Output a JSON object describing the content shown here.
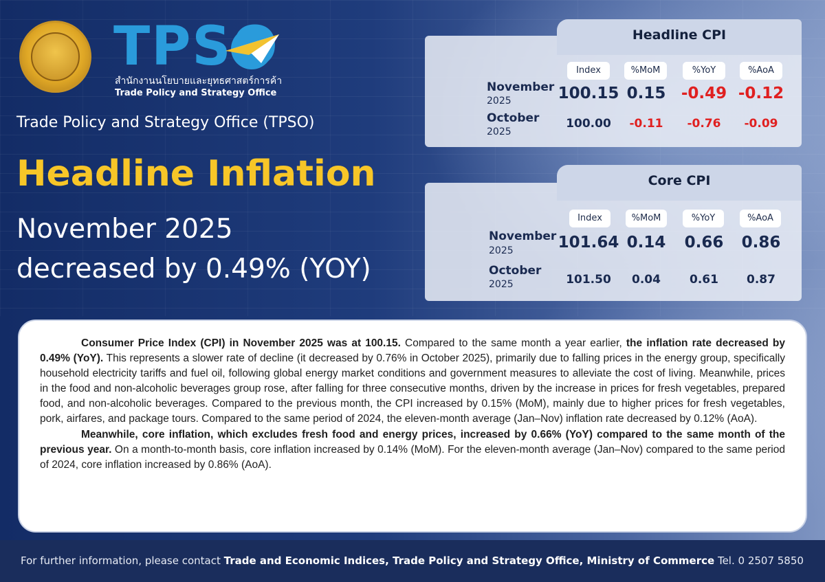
{
  "header": {
    "logo_text": "TPSO",
    "logo_thai": "สำนักงานนโยบายและยุทธศาสตร์การค้า",
    "logo_english": "Trade Policy and Strategy Office",
    "office_name": "Trade Policy and Strategy Office (TPSO)",
    "headline": "Headline Inflation",
    "subheadline_line1": "November 2025",
    "subheadline_line2": "decreased by 0.49% (YOY)"
  },
  "headline_cpi": {
    "title": "Headline CPI",
    "columns": [
      "Index",
      "%MoM",
      "%YoY",
      "%AoA"
    ],
    "rows": [
      {
        "month": "November",
        "year": "2025",
        "index": "100.15",
        "mom": "0.15",
        "yoy": "-0.49",
        "aoa": "-0.12"
      },
      {
        "month": "October",
        "year": "2025",
        "index": "100.00",
        "mom": "-0.11",
        "yoy": "-0.76",
        "aoa": "-0.09"
      }
    ]
  },
  "core_cpi": {
    "title": "Core CPI",
    "columns": [
      "Index",
      "%MoM",
      "%YoY",
      "%AoA"
    ],
    "rows": [
      {
        "month": "November",
        "year": "2025",
        "index": "101.64",
        "mom": "0.14",
        "yoy": "0.66",
        "aoa": "0.86"
      },
      {
        "month": "October",
        "year": "2025",
        "index": "101.50",
        "mom": "0.04",
        "yoy": "0.61",
        "aoa": "0.87"
      }
    ]
  },
  "body": {
    "p1_bold1": "Consumer Price Index (CPI) in November 2025 was at 100.15.",
    "p1_text1": " Compared to the same month a year earlier, ",
    "p1_bold2": "the inflation rate decreased by 0.49% (YoY).",
    "p1_text2": " This represents a slower rate of decline (it decreased by 0.76% in October 2025), primarily due to falling prices in the energy group, specifically household electricity tariffs and fuel oil, following global energy market conditions and government measures to alleviate the cost of living. Meanwhile, prices in the food and non-alcoholic beverages group rose, after falling for three consecutive months, driven by the increase in prices for fresh vegetables, prepared food, and non-alcoholic beverages. Compared to the previous month, the CPI increased by 0.15% (MoM), mainly due to higher prices for fresh vegetables, pork, airfares, and package tours. Compared to the same period of 2024, the eleven-month average (Jan–Nov) inflation rate decreased by 0.12% (AoA).",
    "p2_bold": "Meanwhile, core inflation, which excludes fresh food and energy prices, increased by 0.66% (YoY) compared to the same month of the previous year.",
    "p2_text": " On a month-to-month basis, core inflation increased by 0.14% (MoM). For the eleven-month average (Jan–Nov) compared to the same period of 2024, core inflation increased by 0.86% (AoA)."
  },
  "footer": {
    "prefix": "For further information, please contact ",
    "contact": "Trade and Economic Indices, Trade Policy and Strategy Office, Ministry of Commerce",
    "tel": " Tel. 0 2507 5850"
  },
  "colors": {
    "headline_yellow": "#f7c628",
    "negative_red": "#e02020",
    "logo_blue": "#2a9bdb",
    "background_navy": "#1e3a78"
  }
}
